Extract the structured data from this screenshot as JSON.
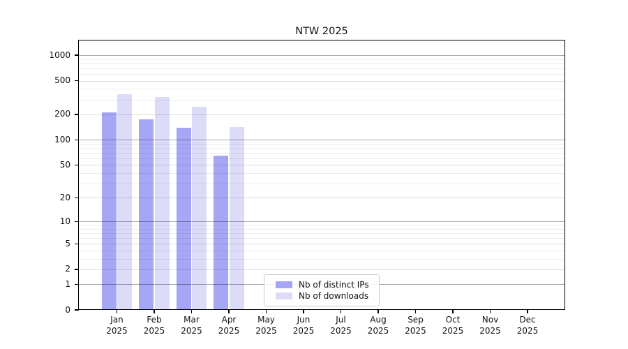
{
  "title": "NTW 2025",
  "legend": {
    "items": [
      {
        "label": "Nb of distinct IPs"
      },
      {
        "label": "Nb of downloads"
      }
    ]
  },
  "chart_data": {
    "type": "bar",
    "title": "NTW 2025",
    "categories": [
      "Jan 2025",
      "Feb 2025",
      "Mar 2025",
      "Apr 2025",
      "May 2025",
      "Jun 2025",
      "Jul 2025",
      "Aug 2025",
      "Sep 2025",
      "Oct 2025",
      "Nov 2025",
      "Dec 2025"
    ],
    "series": [
      {
        "name": "Nb of distinct IPs",
        "color": "#a6a6f6",
        "values": [
          210,
          175,
          140,
          65,
          null,
          null,
          null,
          null,
          null,
          null,
          null,
          null
        ]
      },
      {
        "name": "Nb of downloads",
        "color": "#dcdcf9",
        "values": [
          348,
          320,
          245,
          142,
          null,
          null,
          null,
          null,
          null,
          null,
          null,
          null
        ]
      }
    ],
    "xlabel": "",
    "ylabel": "",
    "yscale": "symlog (log10(1+x) spacing)",
    "yticks": [
      0,
      1,
      2,
      5,
      10,
      20,
      50,
      100,
      200,
      500,
      1000
    ],
    "ylim": [
      0,
      1490
    ],
    "grid": true,
    "legend_position": "lower center"
  }
}
